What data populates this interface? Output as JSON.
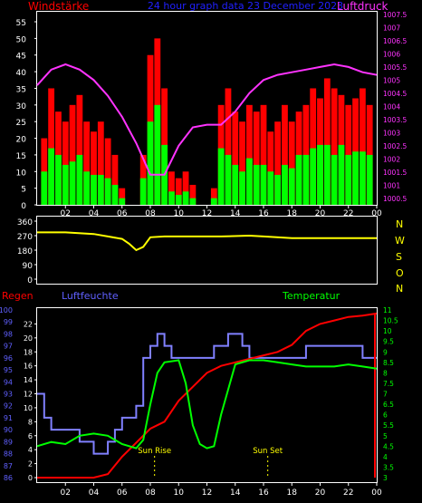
{
  "header": {
    "left_label": "Windstärke",
    "center_label": "24 hour graph data 23 December 2023",
    "right_label": "Luftdruck"
  },
  "colors": {
    "background": "#000000",
    "frame": "#ffffff",
    "wind_gust": "#ff0000",
    "wind_avg": "#00ff00",
    "pressure": "#ff33ff",
    "direction": "#ffff00",
    "humidity": "#8080ff",
    "temperature": "#00ff00",
    "rain": "#ff0000",
    "sun_marker": "#ffff00",
    "humidity_label": "#6060ff",
    "rain_label": "#ff0000",
    "temp_label": "#00ff00"
  },
  "chart_data": [
    {
      "type": "bar",
      "name": "wind",
      "x_ticks": [
        "02",
        "04",
        "06",
        "08",
        "10",
        "12",
        "14",
        "16",
        "18",
        "20",
        "22",
        "00"
      ],
      "y_ticks": [
        "0",
        "5",
        "10",
        "15",
        "20",
        "25",
        "30",
        "35",
        "40",
        "45",
        "50",
        "55"
      ],
      "ylim": [
        0,
        58
      ],
      "y2_ticks": [
        "1000.5",
        "1001",
        "1001.5",
        "1002",
        "1002.5",
        "1003",
        "1003.5",
        "1004",
        "1004.5",
        "1005",
        "1005.5",
        "1006",
        "1006.5",
        "1007",
        "1007.5"
      ],
      "y2lim": [
        1000.25,
        1007.6
      ],
      "series": [
        {
          "name": "Windstärke",
          "hours": [
            0.5,
            1,
            1.5,
            2,
            2.5,
            3,
            3.5,
            4,
            4.5,
            5,
            5.5,
            6,
            7,
            7.5,
            8,
            8.5,
            9,
            9.5,
            10,
            10.5,
            11,
            11.5,
            12,
            12.5,
            13,
            13.5,
            14,
            14.5,
            15,
            15.5,
            16,
            16.5,
            17,
            17.5,
            18,
            18.5,
            19,
            19.5,
            20,
            20.5,
            21,
            21.5,
            22,
            22.5,
            23,
            23.5
          ],
          "gust": [
            20,
            35,
            28,
            25,
            30,
            33,
            25,
            22,
            25,
            20,
            15,
            5,
            0,
            15,
            45,
            50,
            35,
            10,
            8,
            10,
            6,
            0,
            0,
            5,
            30,
            35,
            28,
            25,
            30,
            28,
            30,
            22,
            25,
            30,
            25,
            28,
            30,
            35,
            32,
            38,
            35,
            33,
            30,
            32,
            35,
            30
          ],
          "avg": [
            10,
            17,
            15,
            12,
            13,
            15,
            10,
            9,
            9,
            8,
            6,
            2,
            0,
            8,
            25,
            30,
            18,
            4,
            3,
            4,
            2,
            0,
            0,
            2,
            17,
            15,
            12,
            10,
            14,
            12,
            12,
            10,
            9,
            12,
            11,
            15,
            15,
            17,
            18,
            18,
            15,
            18,
            15,
            16,
            16,
            15
          ]
        },
        {
          "name": "Luftdruck",
          "hours": [
            0,
            1,
            2,
            3,
            4,
            5,
            6,
            7,
            8,
            9,
            10,
            11,
            12,
            13,
            14,
            15,
            16,
            17,
            18,
            19,
            20,
            21,
            22,
            23,
            24
          ],
          "values": [
            1004.8,
            1005.4,
            1005.6,
            1005.4,
            1005.0,
            1004.4,
            1003.6,
            1002.6,
            1001.4,
            1001.4,
            1002.5,
            1003.2,
            1003.3,
            1003.3,
            1003.8,
            1004.5,
            1005.0,
            1005.2,
            1005.3,
            1005.4,
            1005.5,
            1005.6,
            1005.5,
            1005.3,
            1005.2
          ]
        }
      ]
    },
    {
      "type": "line",
      "name": "wind-direction",
      "right_labels": [
        "N",
        "W",
        "S",
        "O",
        "N"
      ],
      "y_ticks": [
        "360",
        "270",
        "180",
        "90",
        "0"
      ],
      "ylim": [
        0,
        360
      ],
      "series": [
        {
          "name": "Windrichtung",
          "hours": [
            0,
            2,
            4,
            5,
            6,
            6.5,
            7,
            7.5,
            8,
            9,
            11,
            13,
            15,
            16,
            18,
            20,
            22,
            24
          ],
          "values": [
            290,
            290,
            280,
            265,
            250,
            220,
            180,
            200,
            260,
            265,
            265,
            265,
            270,
            265,
            255,
            255,
            255,
            255
          ]
        }
      ]
    },
    {
      "type": "line",
      "name": "climate",
      "left_label": "Regen",
      "mid_label": "Luftfeuchte",
      "right_label": "Temperatur",
      "humidity_ticks": [
        "86",
        "87",
        "88",
        "89",
        "90",
        "91",
        "92",
        "93",
        "94",
        "95",
        "96",
        "97",
        "98",
        "99",
        "100"
      ],
      "humidity_lim": [
        86,
        100
      ],
      "rain_ticks": [
        "0",
        "2",
        "4",
        "6",
        "8",
        "10",
        "12",
        "14",
        "16",
        "18",
        "20",
        "22"
      ],
      "rain_lim": [
        0,
        24
      ],
      "temp_ticks": [
        "3",
        "3.5",
        "4",
        "4.5",
        "5",
        "5.5",
        "6",
        "6.5",
        "7",
        "7.5",
        "8",
        "8.5",
        "9",
        "9.5",
        "10",
        "10.5",
        "11"
      ],
      "temp_lim": [
        3,
        11
      ],
      "x_ticks": [
        "02",
        "04",
        "06",
        "08",
        "10",
        "12",
        "14",
        "16",
        "18",
        "20",
        "22",
        "00"
      ],
      "annotations": [
        {
          "label": "Sun Rise",
          "hour": 8.3
        },
        {
          "label": "Sun Set",
          "hour": 16.3
        }
      ],
      "series": [
        {
          "name": "Luftfeuchte",
          "hours": [
            0,
            0.5,
            1,
            2,
            3,
            3.5,
            4,
            4.3,
            5,
            5.5,
            6,
            7,
            7.5,
            8,
            8.5,
            9,
            9.5,
            10,
            11,
            12,
            12.5,
            13,
            13.5,
            14,
            14.5,
            15,
            16,
            17,
            18,
            19,
            20,
            21,
            22,
            23,
            23.5,
            24
          ],
          "values": [
            93,
            91,
            90,
            90,
            89,
            89,
            88,
            88,
            89,
            90,
            91,
            92,
            96,
            97,
            98,
            97,
            96,
            96,
            96,
            96,
            97,
            97,
            98,
            98,
            97,
            96,
            96,
            96,
            96,
            97,
            97,
            97,
            97,
            96,
            96,
            96
          ]
        },
        {
          "name": "Regen",
          "hours": [
            0,
            1,
            2,
            3,
            4,
            5,
            6,
            7,
            8,
            9,
            10,
            11,
            12,
            13,
            14,
            15,
            16,
            17,
            18,
            19,
            20,
            21,
            22,
            23,
            24
          ],
          "values": [
            0,
            0,
            0,
            0,
            0,
            0.5,
            3,
            5,
            7,
            8,
            11,
            13,
            15,
            16,
            16.5,
            17,
            17.5,
            18,
            19,
            21,
            22,
            22.5,
            23,
            23.2,
            23.5
          ]
        },
        {
          "name": "Temperatur",
          "hours": [
            0,
            1,
            2,
            3,
            4,
            5,
            6,
            7,
            7.5,
            8,
            8.5,
            9,
            10,
            10.5,
            11,
            11.5,
            12,
            12.5,
            13,
            14,
            15,
            16,
            17,
            18,
            19,
            20,
            21,
            22,
            23,
            24
          ],
          "values": [
            4.5,
            4.7,
            4.6,
            5.0,
            5.1,
            5.0,
            4.6,
            4.4,
            4.8,
            6.5,
            8.0,
            8.5,
            8.6,
            7.5,
            5.5,
            4.6,
            4.4,
            4.5,
            6.0,
            8.4,
            8.6,
            8.6,
            8.5,
            8.4,
            8.3,
            8.3,
            8.3,
            8.4,
            8.3,
            8.2
          ]
        }
      ]
    }
  ]
}
